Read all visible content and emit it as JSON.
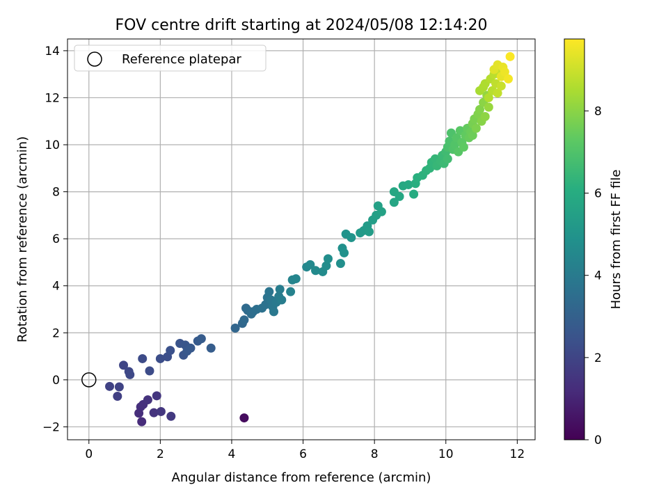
{
  "chart_data": {
    "type": "scatter",
    "title": "FOV centre drift starting at 2024/05/08 12:14:20",
    "xlabel": "Angular distance from reference (arcmin)",
    "ylabel": "Rotation from reference (arcmin)",
    "xlim": [
      -0.6,
      12.5
    ],
    "ylim": [
      -2.55,
      14.5
    ],
    "xticks": [
      0,
      2,
      4,
      6,
      8,
      10,
      12
    ],
    "yticks": [
      -2,
      0,
      2,
      4,
      6,
      8,
      10,
      12,
      14
    ],
    "grid": true,
    "legend": {
      "placement": "top-left",
      "entries": [
        {
          "label": "Reference platepar",
          "marker": "open-circle"
        }
      ]
    },
    "reference_point": {
      "x": 0,
      "y": 0
    },
    "colorbar": {
      "label": "Hours from first FF file",
      "min": 0,
      "max": 9.75,
      "ticks": [
        0,
        2,
        4,
        6,
        8
      ],
      "colormap": "viridis"
    },
    "points": [
      [
        4.35,
        -1.62,
        0.3
      ],
      [
        1.48,
        -1.78,
        1.2
      ],
      [
        1.4,
        -1.42,
        1.25
      ],
      [
        1.45,
        -1.15,
        1.3
      ],
      [
        1.52,
        -1.05,
        1.35
      ],
      [
        1.65,
        -0.85,
        1.4
      ],
      [
        1.82,
        -1.4,
        1.45
      ],
      [
        1.9,
        -0.68,
        1.5
      ],
      [
        2.02,
        -1.35,
        1.55
      ],
      [
        2.3,
        -1.55,
        1.6
      ],
      [
        0.8,
        -0.7,
        1.8
      ],
      [
        0.58,
        -0.28,
        1.9
      ],
      [
        0.85,
        -0.3,
        1.95
      ],
      [
        0.97,
        0.62,
        2.0
      ],
      [
        1.12,
        0.35,
        2.1
      ],
      [
        1.15,
        0.22,
        2.15
      ],
      [
        1.5,
        0.9,
        2.2
      ],
      [
        1.7,
        0.38,
        2.25
      ],
      [
        2.0,
        0.9,
        2.3
      ],
      [
        2.2,
        0.98,
        2.35
      ],
      [
        2.28,
        1.25,
        2.4
      ],
      [
        2.55,
        1.55,
        2.5
      ],
      [
        2.65,
        1.05,
        2.55
      ],
      [
        2.7,
        1.48,
        2.6
      ],
      [
        2.75,
        1.22,
        2.65
      ],
      [
        2.85,
        1.35,
        2.7
      ],
      [
        3.05,
        1.65,
        2.75
      ],
      [
        3.15,
        1.75,
        2.8
      ],
      [
        3.42,
        1.35,
        2.85
      ],
      [
        4.1,
        2.2,
        3.2
      ],
      [
        4.3,
        2.4,
        3.25
      ],
      [
        4.35,
        2.55,
        3.3
      ],
      [
        4.4,
        3.05,
        3.35
      ],
      [
        4.45,
        2.95,
        3.4
      ],
      [
        4.55,
        2.8,
        3.45
      ],
      [
        4.6,
        2.9,
        3.5
      ],
      [
        4.7,
        3.0,
        3.55
      ],
      [
        4.85,
        3.05,
        3.6
      ],
      [
        4.95,
        3.2,
        3.65
      ],
      [
        5.0,
        3.5,
        3.7
      ],
      [
        5.05,
        3.75,
        3.75
      ],
      [
        5.1,
        3.4,
        3.8
      ],
      [
        5.15,
        3.1,
        3.85
      ],
      [
        5.18,
        2.9,
        3.9
      ],
      [
        5.25,
        3.3,
        3.95
      ],
      [
        5.32,
        3.55,
        4.0
      ],
      [
        5.35,
        3.85,
        4.05
      ],
      [
        5.4,
        3.4,
        4.1
      ],
      [
        5.65,
        3.75,
        4.3
      ],
      [
        5.7,
        4.25,
        4.35
      ],
      [
        5.8,
        4.3,
        4.4
      ],
      [
        6.1,
        4.8,
        4.5
      ],
      [
        6.2,
        4.9,
        4.55
      ],
      [
        6.35,
        4.65,
        4.6
      ],
      [
        6.55,
        4.6,
        4.65
      ],
      [
        6.65,
        4.85,
        4.7
      ],
      [
        6.7,
        5.15,
        4.75
      ],
      [
        7.05,
        4.95,
        4.8
      ],
      [
        7.1,
        5.6,
        4.85
      ],
      [
        7.15,
        5.4,
        4.9
      ],
      [
        7.2,
        6.2,
        4.95
      ],
      [
        7.35,
        6.05,
        5.0
      ],
      [
        7.6,
        6.25,
        5.2
      ],
      [
        7.7,
        6.35,
        5.25
      ],
      [
        7.8,
        6.55,
        5.3
      ],
      [
        7.85,
        6.3,
        5.35
      ],
      [
        7.95,
        6.8,
        5.4
      ],
      [
        8.05,
        7.0,
        5.45
      ],
      [
        8.1,
        7.4,
        5.5
      ],
      [
        8.2,
        7.15,
        5.55
      ],
      [
        8.55,
        7.55,
        5.7
      ],
      [
        8.55,
        8.0,
        5.75
      ],
      [
        8.7,
        7.8,
        5.8
      ],
      [
        8.8,
        8.25,
        5.85
      ],
      [
        8.95,
        8.3,
        5.9
      ],
      [
        9.1,
        7.9,
        5.95
      ],
      [
        9.15,
        8.35,
        6.1
      ],
      [
        9.2,
        8.6,
        6.15
      ],
      [
        9.35,
        8.7,
        6.2
      ],
      [
        9.45,
        8.9,
        6.25
      ],
      [
        9.55,
        9.0,
        6.3
      ],
      [
        9.6,
        9.25,
        6.35
      ],
      [
        9.7,
        9.4,
        6.4
      ],
      [
        9.75,
        9.1,
        6.45
      ],
      [
        9.85,
        9.3,
        6.5
      ],
      [
        9.9,
        9.55,
        6.55
      ],
      [
        9.95,
        9.2,
        6.6
      ],
      [
        10.0,
        9.7,
        6.65
      ],
      [
        10.05,
        9.4,
        6.7
      ],
      [
        10.05,
        9.9,
        6.85
      ],
      [
        10.1,
        10.15,
        6.9
      ],
      [
        10.15,
        10.5,
        6.95
      ],
      [
        10.2,
        9.8,
        7.0
      ],
      [
        10.25,
        10.0,
        7.05
      ],
      [
        10.3,
        10.3,
        7.1
      ],
      [
        10.35,
        9.7,
        7.15
      ],
      [
        10.4,
        10.6,
        7.2
      ],
      [
        10.45,
        10.1,
        7.25
      ],
      [
        10.5,
        9.9,
        7.3
      ],
      [
        10.55,
        10.4,
        7.35
      ],
      [
        10.6,
        10.7,
        7.4
      ],
      [
        10.65,
        10.3,
        7.45
      ],
      [
        10.7,
        10.55,
        7.5
      ],
      [
        10.75,
        10.4,
        7.55
      ],
      [
        10.75,
        10.9,
        7.7
      ],
      [
        10.8,
        11.1,
        7.75
      ],
      [
        10.85,
        10.7,
        7.8
      ],
      [
        10.9,
        11.3,
        7.85
      ],
      [
        10.95,
        11.5,
        7.9
      ],
      [
        11.0,
        11.0,
        7.95
      ],
      [
        11.05,
        11.8,
        8.0
      ],
      [
        11.1,
        11.2,
        8.05
      ],
      [
        11.15,
        12.1,
        8.15
      ],
      [
        11.2,
        11.6,
        8.2
      ],
      [
        10.95,
        12.3,
        8.45
      ],
      [
        11.05,
        12.45,
        8.5
      ],
      [
        11.1,
        12.6,
        8.55
      ],
      [
        11.2,
        12.0,
        8.6
      ],
      [
        11.25,
        12.8,
        8.65
      ],
      [
        11.3,
        12.3,
        8.7
      ],
      [
        11.35,
        13.0,
        8.75
      ],
      [
        11.4,
        12.6,
        8.8
      ],
      [
        11.45,
        12.2,
        8.85
      ],
      [
        11.5,
        13.2,
        8.9
      ],
      [
        11.55,
        12.5,
        8.95
      ],
      [
        11.35,
        13.2,
        9.3
      ],
      [
        11.45,
        13.4,
        9.35
      ],
      [
        11.55,
        12.9,
        9.4
      ],
      [
        11.6,
        13.3,
        9.45
      ],
      [
        11.65,
        13.1,
        9.5
      ],
      [
        11.75,
        12.8,
        9.6
      ],
      [
        11.8,
        13.75,
        9.7
      ]
    ]
  }
}
